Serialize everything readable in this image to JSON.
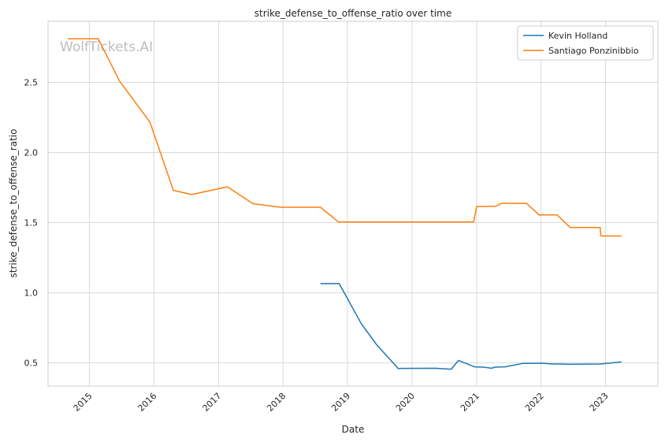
{
  "watermark": "WolfTickets.AI",
  "colors": {
    "background": "#ffffff",
    "grid": "#d9d9d9",
    "axis": "#cccccc",
    "text": "#262626",
    "watermark": "#bdbdbd"
  },
  "chart_data": {
    "type": "line",
    "title": "strike_defense_to_offense_ratio over time",
    "xlabel": "Date",
    "ylabel": "strike_defense_to_offense_ratio",
    "grid": true,
    "legend_position": "top-right",
    "x_ticks": [
      "2015",
      "2016",
      "2017",
      "2018",
      "2019",
      "2020",
      "2021",
      "2022",
      "2023"
    ],
    "y_ticks": [
      "0.5",
      "1.0",
      "1.5",
      "2.0",
      "2.5"
    ],
    "x_range": [
      "2014-05-12",
      "2023-10-24"
    ],
    "y_range": [
      0.335,
      2.935
    ],
    "series": [
      {
        "name": "Kevin Holland",
        "color": "#1f77b4",
        "points": [
          [
            "2018-08-01",
            1.065
          ],
          [
            "2018-11-15",
            1.065
          ],
          [
            "2019-03-20",
            0.78
          ],
          [
            "2019-06-15",
            0.63
          ],
          [
            "2019-10-15",
            0.46
          ],
          [
            "2020-05-10",
            0.462
          ],
          [
            "2020-08-10",
            0.455
          ],
          [
            "2020-09-20",
            0.518
          ],
          [
            "2020-12-20",
            0.472
          ],
          [
            "2021-02-10",
            0.47
          ],
          [
            "2021-03-25",
            0.462
          ],
          [
            "2021-04-15",
            0.47
          ],
          [
            "2021-06-10",
            0.472
          ],
          [
            "2021-09-20",
            0.497
          ],
          [
            "2022-01-10",
            0.498
          ],
          [
            "2022-03-05",
            0.492
          ],
          [
            "2022-05-01",
            0.492
          ],
          [
            "2022-06-05",
            0.49
          ],
          [
            "2022-12-01",
            0.492
          ],
          [
            "2023-04-01",
            0.507
          ]
        ]
      },
      {
        "name": "Santiago Ponzinibbio",
        "color": "#ff7f0e",
        "points": [
          [
            "2014-09-01",
            2.81
          ],
          [
            "2015-02-20",
            2.81
          ],
          [
            "2015-06-20",
            2.51
          ],
          [
            "2015-12-10",
            2.215
          ],
          [
            "2016-04-20",
            1.73
          ],
          [
            "2016-08-01",
            1.7
          ],
          [
            "2017-02-20",
            1.755
          ],
          [
            "2017-07-15",
            1.635
          ],
          [
            "2017-12-15",
            1.61
          ],
          [
            "2018-08-01",
            1.61
          ],
          [
            "2018-11-10",
            1.505
          ],
          [
            "2020-12-15",
            1.505
          ],
          [
            "2021-01-01",
            1.615
          ],
          [
            "2021-04-20",
            1.617
          ],
          [
            "2021-05-20",
            1.637
          ],
          [
            "2021-10-10",
            1.637
          ],
          [
            "2021-12-20",
            1.555
          ],
          [
            "2022-04-01",
            1.555
          ],
          [
            "2022-06-15",
            1.465
          ],
          [
            "2022-12-01",
            1.465
          ],
          [
            "2022-12-05",
            1.405
          ],
          [
            "2023-04-01",
            1.405
          ]
        ]
      }
    ]
  }
}
